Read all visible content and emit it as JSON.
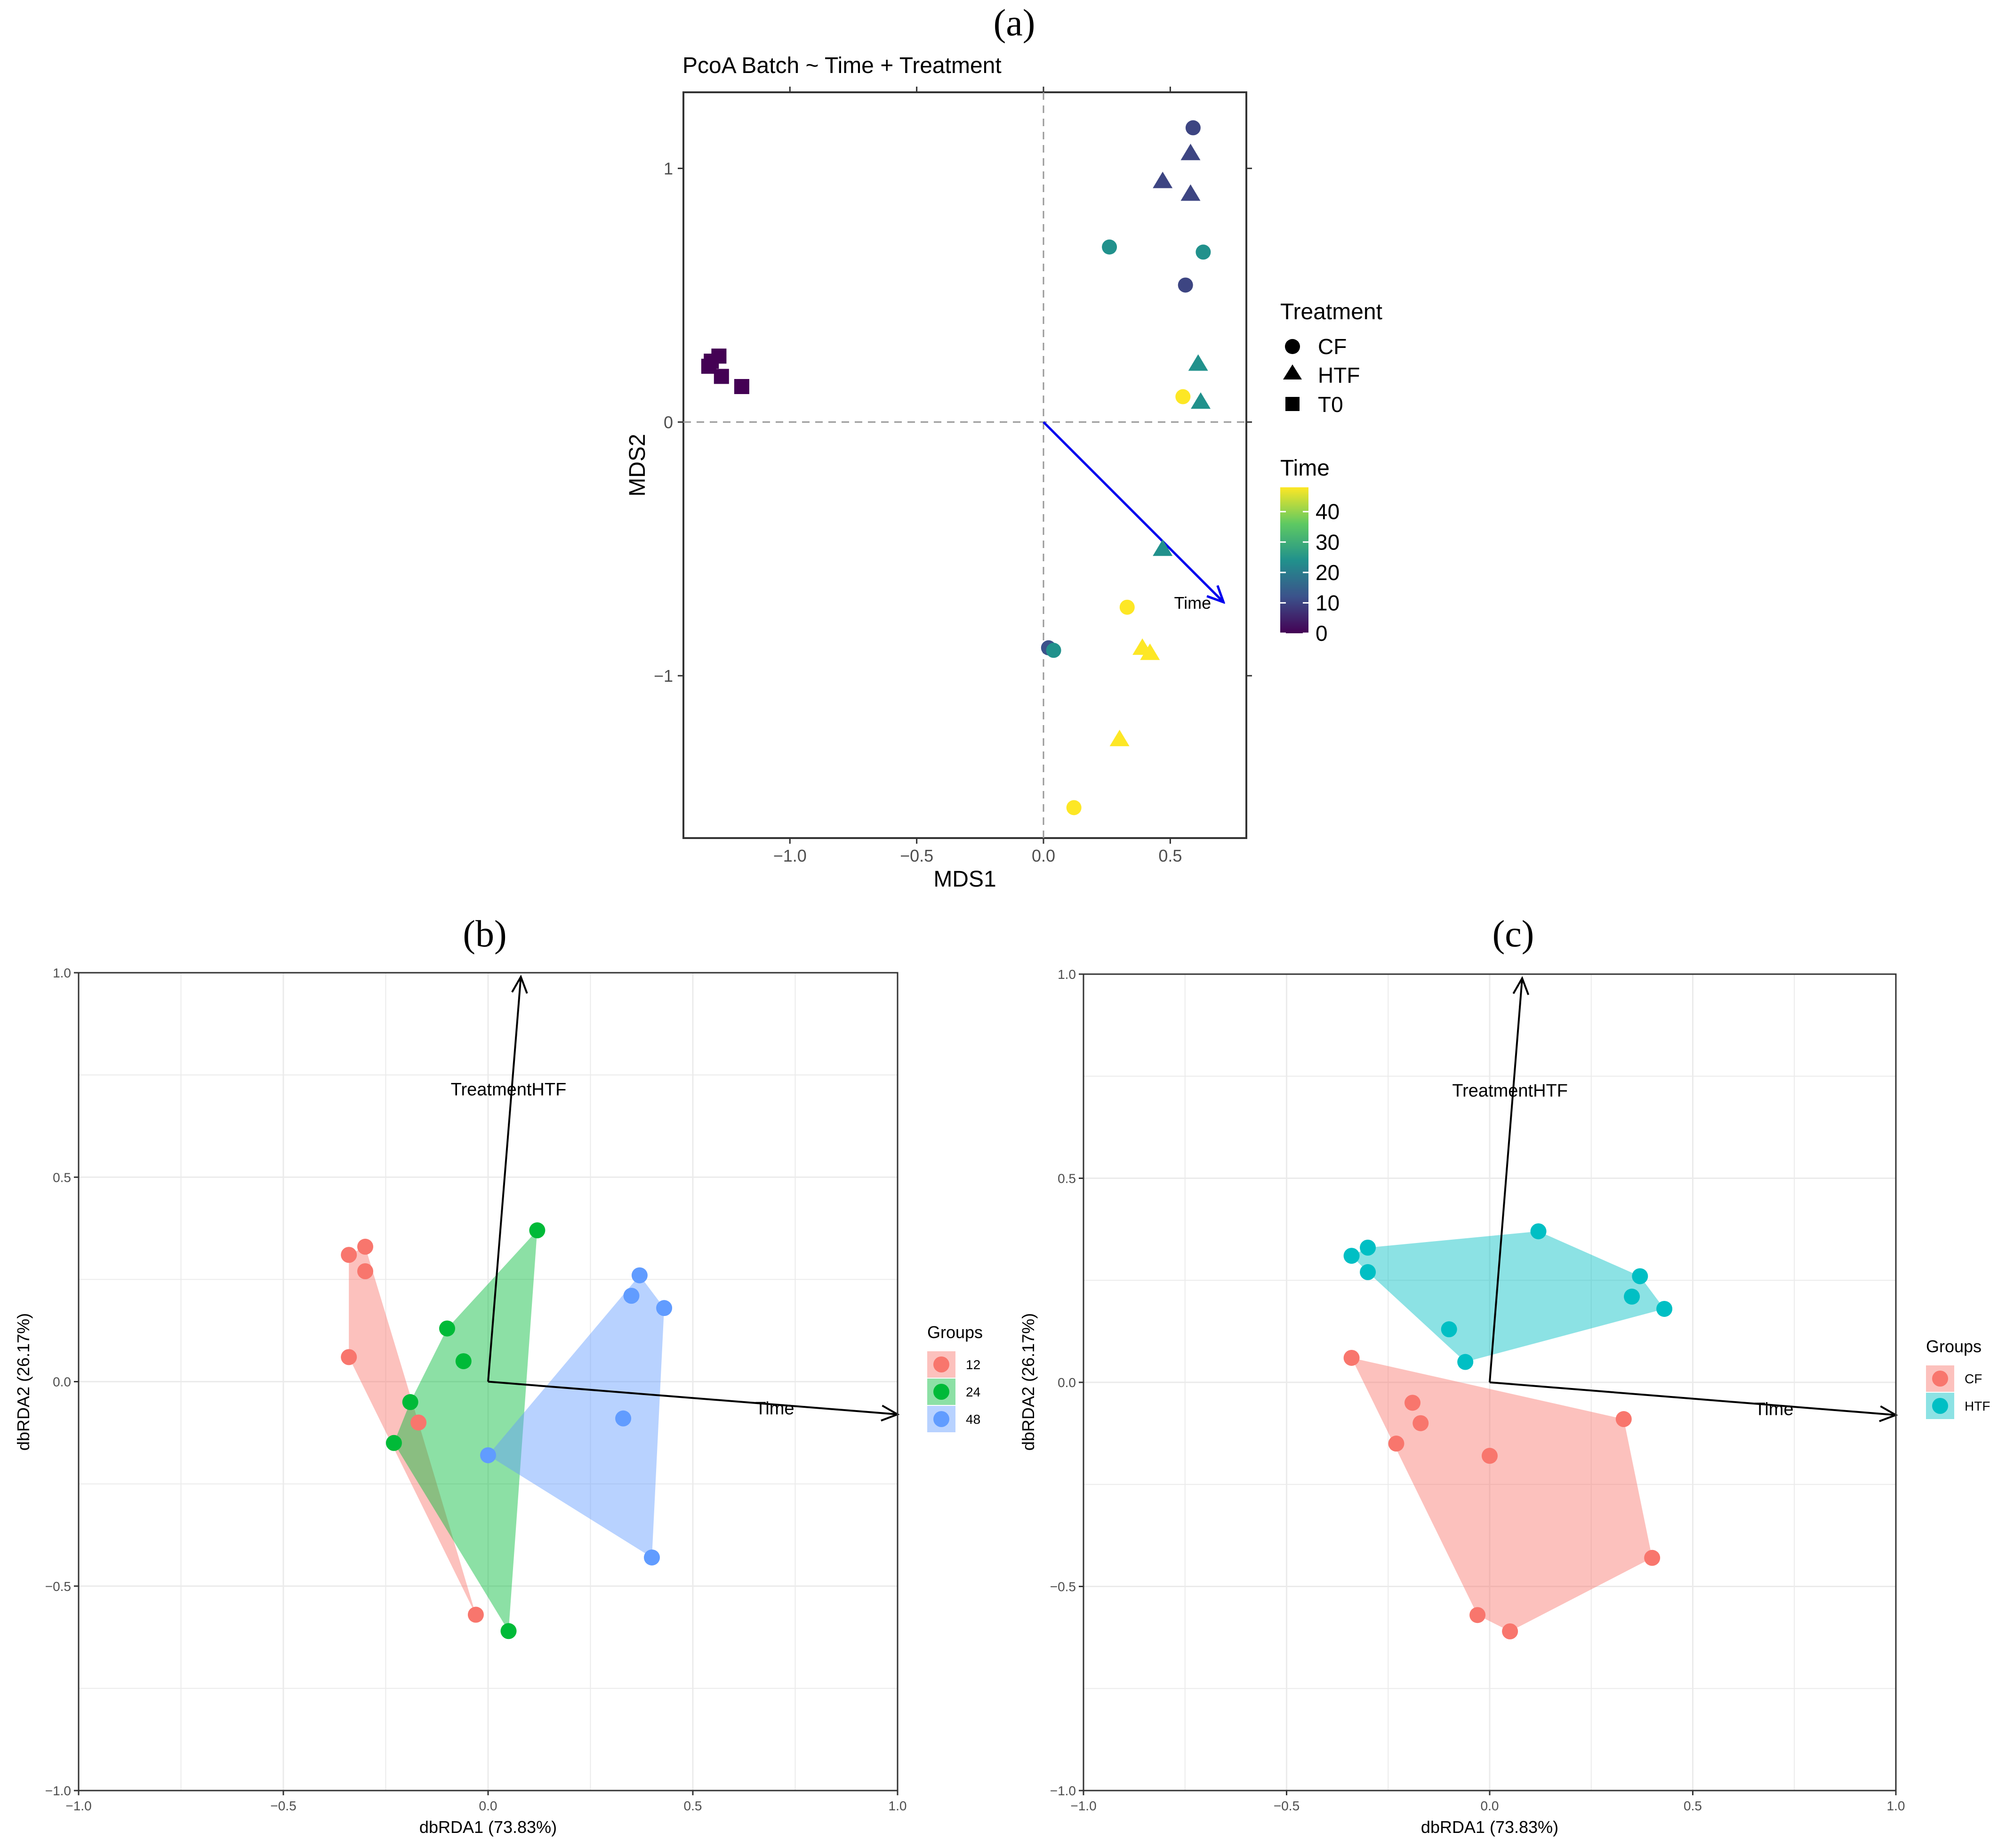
{
  "figure": {
    "label_a": "(a)",
    "label_b": "(b)",
    "label_c": "(c)"
  },
  "chart_data": [
    {
      "id": "a",
      "type": "scatter",
      "title": "PcoA Batch ~ Time + Treatment",
      "xlabel": "MDS1",
      "ylabel": "MDS2",
      "xlim": [
        -1.42,
        0.8
      ],
      "ylim": [
        -1.64,
        1.3
      ],
      "xticks": [
        -1.0,
        -0.5,
        0.0,
        0.5
      ],
      "xtick_labels": [
        "−1.0",
        "−0.5",
        "0.0",
        "0.5"
      ],
      "yticks": [
        -1,
        0,
        1
      ],
      "ytick_labels": [
        "−1",
        "0",
        "1"
      ],
      "reference_lines": {
        "x": 0,
        "y": 0,
        "style": "dashed"
      },
      "points": [
        {
          "x": 0.59,
          "y": 1.16,
          "shape": "CF",
          "time": 10
        },
        {
          "x": 0.58,
          "y": 1.06,
          "shape": "HTF",
          "time": 10
        },
        {
          "x": 0.47,
          "y": 0.95,
          "shape": "HTF",
          "time": 10
        },
        {
          "x": 0.58,
          "y": 0.9,
          "shape": "HTF",
          "time": 10
        },
        {
          "x": 0.26,
          "y": 0.69,
          "shape": "CF",
          "time": 24
        },
        {
          "x": 0.63,
          "y": 0.67,
          "shape": "CF",
          "time": 24
        },
        {
          "x": 0.56,
          "y": 0.54,
          "shape": "CF",
          "time": 10
        },
        {
          "x": 0.61,
          "y": 0.23,
          "shape": "HTF",
          "time": 24
        },
        {
          "x": 0.55,
          "y": 0.1,
          "shape": "CF",
          "time": 48
        },
        {
          "x": 0.62,
          "y": 0.08,
          "shape": "HTF",
          "time": 24
        },
        {
          "x": 0.47,
          "y": -0.5,
          "shape": "HTF",
          "time": 24
        },
        {
          "x": 0.33,
          "y": -0.73,
          "shape": "CF",
          "time": 48
        },
        {
          "x": 0.39,
          "y": -0.89,
          "shape": "HTF",
          "time": 48
        },
        {
          "x": 0.42,
          "y": -0.91,
          "shape": "HTF",
          "time": 48
        },
        {
          "x": 0.02,
          "y": -0.89,
          "shape": "CF",
          "time": 12
        },
        {
          "x": 0.04,
          "y": -0.9,
          "shape": "CF",
          "time": 24
        },
        {
          "x": 0.3,
          "y": -1.25,
          "shape": "HTF",
          "time": 48
        },
        {
          "x": 0.12,
          "y": -1.52,
          "shape": "CF",
          "time": 48
        },
        {
          "x": -1.32,
          "y": 0.22,
          "shape": "T0",
          "time": 0
        },
        {
          "x": -1.28,
          "y": 0.26,
          "shape": "T0",
          "time": 0
        },
        {
          "x": -1.31,
          "y": 0.24,
          "shape": "T0",
          "time": 0
        },
        {
          "x": -1.27,
          "y": 0.18,
          "shape": "T0",
          "time": 0
        },
        {
          "x": -1.19,
          "y": 0.14,
          "shape": "T0",
          "time": 0
        }
      ],
      "vector": {
        "label": "Time",
        "x": 0.71,
        "y": -0.71,
        "color": "#0000ee"
      },
      "legend_shape": {
        "title": "Treatment",
        "items": [
          "CF",
          "HTF",
          "T0"
        ]
      },
      "legend_color": {
        "title": "Time",
        "ticks": [
          40,
          30,
          20,
          10,
          0
        ],
        "range": [
          0,
          48
        ]
      }
    },
    {
      "id": "b",
      "type": "scatter",
      "xlabel": "dbRDA1 (73.83%)",
      "ylabel": "dbRDA2 (26.17%)",
      "xlim": [
        -1.0,
        1.0
      ],
      "ylim": [
        -1.0,
        1.0
      ],
      "xticks": [
        -1.0,
        -0.5,
        0.0,
        0.5,
        1.0
      ],
      "xtick_labels": [
        "−1.0",
        "−0.5",
        "0.0",
        "0.5",
        "1.0"
      ],
      "yticks": [
        -1.0,
        -0.5,
        0.0,
        0.5,
        1.0
      ],
      "ytick_labels": [
        "−1.0",
        "−0.5",
        "0.0",
        "0.5",
        "1.0"
      ],
      "vectors": [
        {
          "label": "TreatmentHTF",
          "x": 0.08,
          "y": 0.99
        },
        {
          "label": "Time",
          "x": 1.0,
          "y": -0.08
        }
      ],
      "legend": {
        "title": "Groups",
        "items": [
          "12",
          "24",
          "48"
        ]
      },
      "series": [
        {
          "name": "12",
          "color": "#f8766d",
          "points": [
            [
              -0.34,
              0.31
            ],
            [
              -0.3,
              0.33
            ],
            [
              -0.3,
              0.27
            ],
            [
              -0.34,
              0.06
            ],
            [
              -0.17,
              -0.1
            ],
            [
              -0.03,
              -0.57
            ]
          ]
        },
        {
          "name": "24",
          "color": "#00ba38",
          "points": [
            [
              0.12,
              0.37
            ],
            [
              -0.1,
              0.13
            ],
            [
              -0.06,
              0.05
            ],
            [
              -0.19,
              -0.05
            ],
            [
              -0.23,
              -0.15
            ],
            [
              0.05,
              -0.61
            ]
          ]
        },
        {
          "name": "48",
          "color": "#619cff",
          "points": [
            [
              0.37,
              0.26
            ],
            [
              0.35,
              0.21
            ],
            [
              0.43,
              0.18
            ],
            [
              0.33,
              -0.09
            ],
            [
              0.0,
              -0.18
            ],
            [
              0.4,
              -0.43
            ]
          ]
        }
      ]
    },
    {
      "id": "c",
      "type": "scatter",
      "xlabel": "dbRDA1 (73.83%)",
      "ylabel": "dbRDA2 (26.17%)",
      "xlim": [
        -1.0,
        1.0
      ],
      "ylim": [
        -1.0,
        1.0
      ],
      "xticks": [
        -1.0,
        -0.5,
        0.0,
        0.5,
        1.0
      ],
      "xtick_labels": [
        "−1.0",
        "−0.5",
        "0.0",
        "0.5",
        "1.0"
      ],
      "yticks": [
        -1.0,
        -0.5,
        0.0,
        0.5,
        1.0
      ],
      "ytick_labels": [
        "−1.0",
        "−0.5",
        "0.0",
        "0.5",
        "1.0"
      ],
      "vectors": [
        {
          "label": "TreatmentHTF",
          "x": 0.08,
          "y": 0.99
        },
        {
          "label": "Time",
          "x": 1.0,
          "y": -0.08
        }
      ],
      "legend": {
        "title": "Groups",
        "items": [
          "CF",
          "HTF"
        ]
      },
      "series": [
        {
          "name": "HTF",
          "color": "#00bfc4",
          "points": [
            [
              -0.34,
              0.31
            ],
            [
              -0.3,
              0.33
            ],
            [
              -0.3,
              0.27
            ],
            [
              0.12,
              0.37
            ],
            [
              0.37,
              0.26
            ],
            [
              0.35,
              0.21
            ],
            [
              0.43,
              0.18
            ],
            [
              -0.1,
              0.13
            ],
            [
              -0.06,
              0.05
            ]
          ]
        },
        {
          "name": "CF",
          "color": "#f8766d",
          "points": [
            [
              -0.34,
              0.06
            ],
            [
              -0.19,
              -0.05
            ],
            [
              -0.17,
              -0.1
            ],
            [
              -0.23,
              -0.15
            ],
            [
              0.0,
              -0.18
            ],
            [
              0.33,
              -0.09
            ],
            [
              0.4,
              -0.43
            ],
            [
              -0.03,
              -0.57
            ],
            [
              0.05,
              -0.61
            ]
          ]
        }
      ]
    }
  ]
}
